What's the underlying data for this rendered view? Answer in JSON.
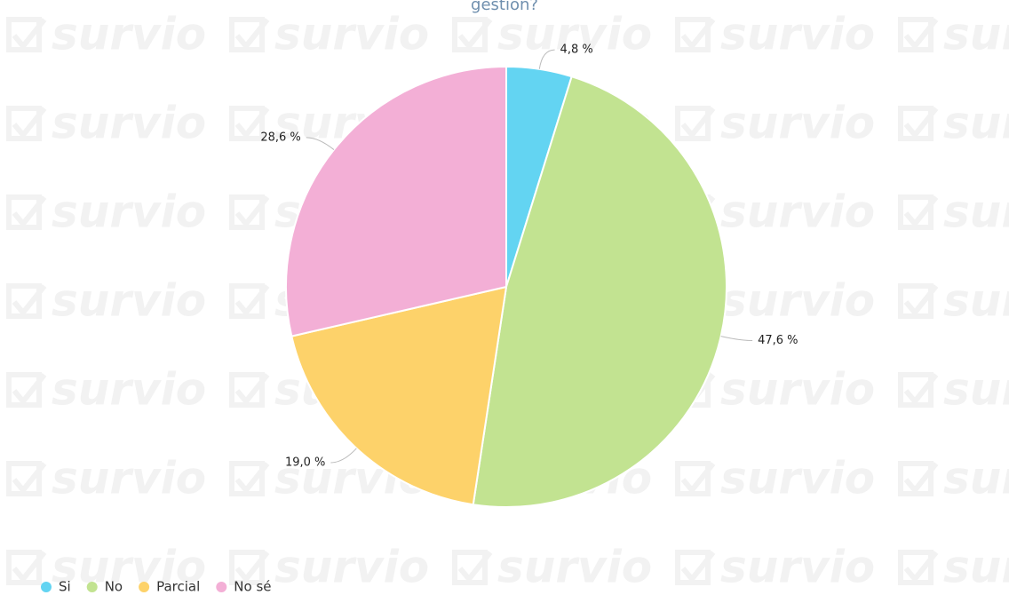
{
  "chart_data": {
    "type": "pie",
    "title": "gestion?",
    "watermark": "survio",
    "categories": [
      "Si",
      "No",
      "Parcial",
      "No sé"
    ],
    "values": [
      4.8,
      47.6,
      19.0,
      28.6
    ],
    "value_labels": [
      "4,8 %",
      "47,6 %",
      "19,0 %",
      "28,6 %"
    ],
    "colors": [
      "#63d4f2",
      "#c2e391",
      "#fdd26a",
      "#f3afd6"
    ],
    "legend": "bottom-left"
  }
}
